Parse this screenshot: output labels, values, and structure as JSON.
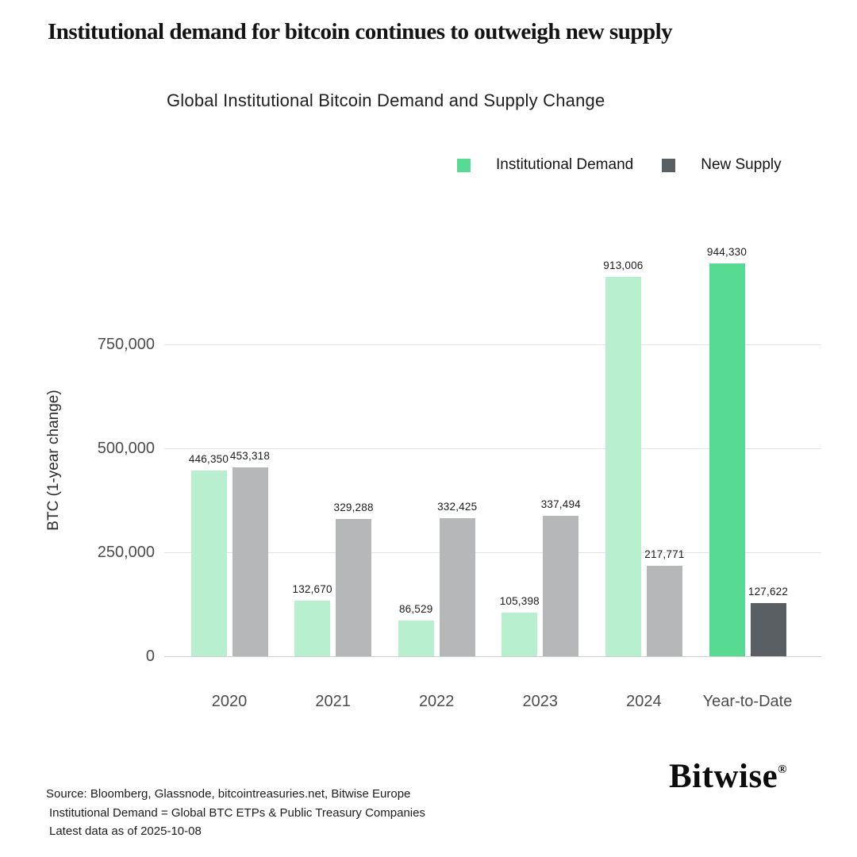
{
  "page": {
    "title": "Institutional demand for bitcoin continues to outweigh new supply",
    "footer_lines": [
      "Source: Bloomberg, Glassnode, bitcointreasuries.net, Bitwise Europe",
      "Institutional Demand = Global BTC ETPs & Public Treasury Companies",
      "Latest data as of 2025-10-08"
    ],
    "brand": "Bitwise",
    "brand_mark": "®"
  },
  "chart_data": {
    "type": "bar",
    "title": "Global Institutional Bitcoin Demand and Supply Change",
    "xlabel": "",
    "ylabel": "BTC (1-year change)",
    "categories": [
      "2020",
      "2021",
      "2022",
      "2023",
      "2024",
      "Year-to-Date"
    ],
    "series": [
      {
        "name": "Institutional Demand",
        "values": [
          446350,
          132670,
          86529,
          105398,
          913006,
          944330
        ]
      },
      {
        "name": "New Supply",
        "values": [
          453318,
          329288,
          332425,
          337494,
          217771,
          127622
        ]
      }
    ],
    "yticks": [
      {
        "value": 0,
        "label": "0"
      },
      {
        "value": 250000,
        "label": "250,000"
      },
      {
        "value": 500000,
        "label": "500,000"
      },
      {
        "value": 750000,
        "label": "750,000"
      }
    ],
    "ylim": [
      0,
      1000000
    ],
    "grid": true,
    "legend_position": "top-right",
    "highlight_category": "Year-to-Date",
    "colors": {
      "demand": "#b8f0cf",
      "demand_highlight": "#57db92",
      "supply": "#b5b7b9",
      "supply_highlight": "#5a5f63"
    }
  }
}
